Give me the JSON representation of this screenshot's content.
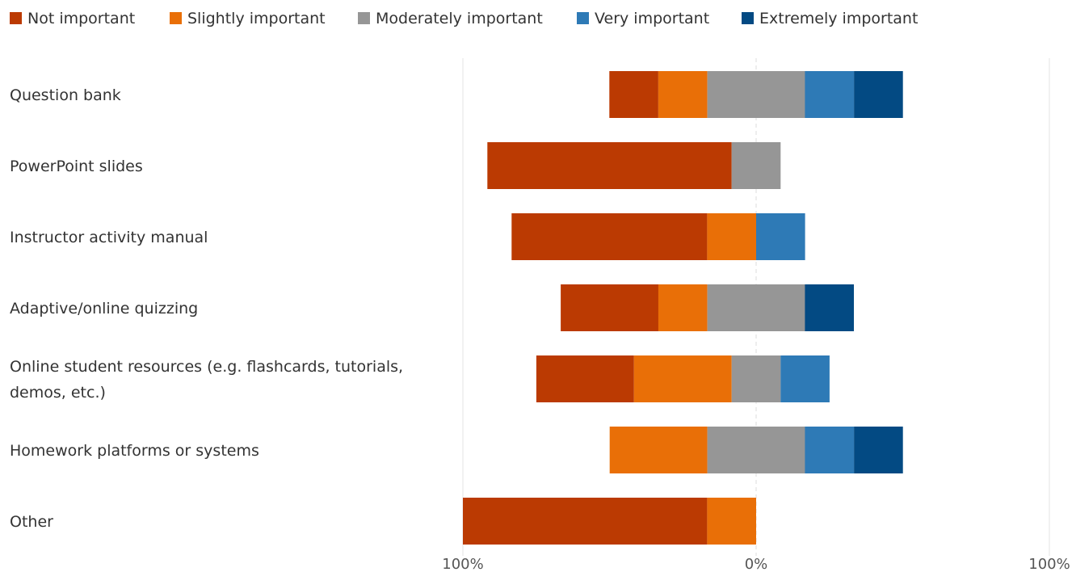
{
  "chart_data": {
    "type": "bar",
    "orientation": "horizontal",
    "stacking": "diverging",
    "categories": [
      [
        "Question bank"
      ],
      [
        "PowerPoint slides"
      ],
      [
        "Instructor activity manual"
      ],
      [
        "Adaptive/online quizzing"
      ],
      [
        "Online student resources (e.g. flashcards, tutorials,",
        "demos, etc.)"
      ],
      [
        "Homework platforms or systems"
      ],
      [
        "Other"
      ]
    ],
    "series": [
      {
        "name": "Not important",
        "color": "#bb3a02",
        "values": [
          16.7,
          83.3,
          66.7,
          33.3,
          33.3,
          0,
          83.3
        ]
      },
      {
        "name": "Slightly important",
        "color": "#e96f07",
        "values": [
          16.7,
          0,
          16.7,
          16.7,
          33.3,
          33.3,
          16.7
        ]
      },
      {
        "name": "Moderately important",
        "color": "#969696",
        "values": [
          33.3,
          16.7,
          0,
          33.3,
          16.7,
          33.3,
          0
        ]
      },
      {
        "name": "Very important",
        "color": "#2e7ab6",
        "values": [
          16.7,
          0,
          16.7,
          0,
          16.7,
          16.7,
          0
        ]
      },
      {
        "name": "Extremely important",
        "color": "#034a83",
        "values": [
          16.7,
          0,
          0,
          16.7,
          0,
          16.7,
          0
        ]
      }
    ],
    "xlim": [
      -100,
      100
    ],
    "tick_labels": [
      "100%",
      "0%",
      "100%"
    ],
    "legend_position": "top-left",
    "grid": true
  }
}
